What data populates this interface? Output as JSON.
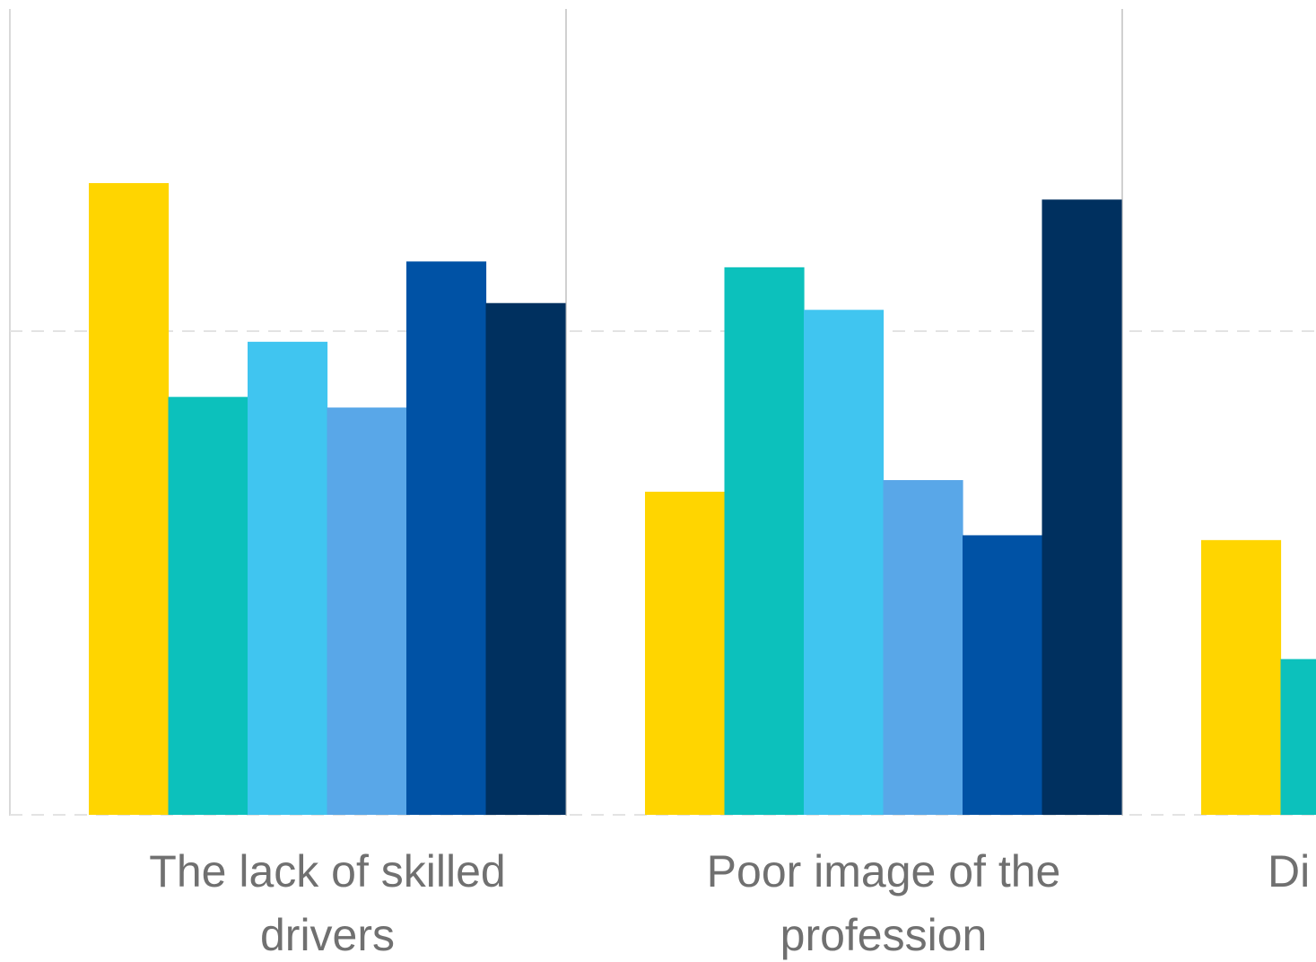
{
  "chart_data": {
    "type": "bar",
    "categories": [
      [
        "The lack of skilled",
        "drivers"
      ],
      [
        "Poor image of the",
        "profession"
      ],
      [
        "Di"
      ]
    ],
    "series": [
      {
        "color": "#FFD500",
        "values": [
          65.3,
          33.4,
          28.4
        ]
      },
      {
        "color": "#0CC1BC",
        "values": [
          43.2,
          56.6,
          16.1
        ]
      },
      {
        "color": "#40C5F0",
        "values": [
          48.9,
          52.2,
          null
        ]
      },
      {
        "color": "#59A7E8",
        "values": [
          42.1,
          34.6,
          null
        ]
      },
      {
        "color": "#0052A5",
        "values": [
          57.2,
          28.9,
          null
        ]
      },
      {
        "color": "#00305F",
        "values": [
          52.9,
          63.6,
          null
        ]
      }
    ],
    "ylim": [
      0,
      83.3
    ],
    "gridlines": [
      0,
      50
    ],
    "grid": true,
    "legend": "none",
    "title": "",
    "xlabel": "",
    "ylabel": ""
  }
}
